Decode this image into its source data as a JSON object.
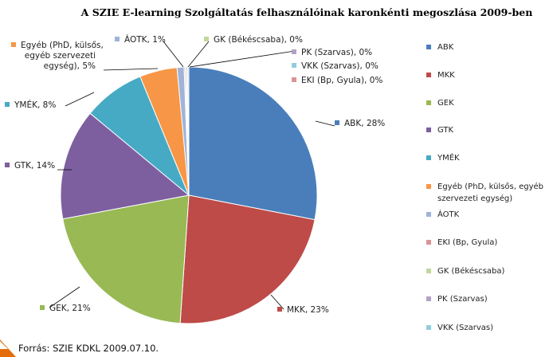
{
  "chart_data": {
    "type": "pie",
    "title": "A SZIE E-learning Szolgáltatás felhasználóinak karonkénti  megoszlása 2009-ben",
    "slices": [
      {
        "key": "abk",
        "legend": "ABK",
        "label": [
          "ABK, 28%"
        ],
        "value": 28.5,
        "color": "#4a7ebb"
      },
      {
        "key": "mkk",
        "legend": "MKK",
        "label": [
          "MKK, 23%"
        ],
        "value": 23.4,
        "color": "#be4b48"
      },
      {
        "key": "gek",
        "legend": "GEK",
        "label": [
          "GEK, 21%"
        ],
        "value": 21.3,
        "color": "#98b954"
      },
      {
        "key": "gtk",
        "legend": "GTK",
        "label": [
          "GTK, 14%"
        ],
        "value": 14.2,
        "color": "#7d5fa0"
      },
      {
        "key": "ymek",
        "legend": "YMÉK",
        "label": [
          "YMÉK, 8%"
        ],
        "value": 7.9,
        "color": "#46aac5"
      },
      {
        "key": "egyeb",
        "legend": [
          "Egyéb (PhD, külsős, egyéb",
          "szervezeti egység)"
        ],
        "label": [
          "Egyéb (PhD, külsős,",
          "egyéb szervezeti",
          "egység), 5%"
        ],
        "value": 4.8,
        "color": "#f79646"
      },
      {
        "key": "aotk",
        "legend": "ÁOTK",
        "label": [
          "ÁOTK, 1%"
        ],
        "value": 0.9,
        "color": "#9fb4d8"
      },
      {
        "key": "eki",
        "legend": "EKI (Bp, Gyula)",
        "label": [
          "EKI (Bp, Gyula), 0%"
        ],
        "value": 0.15,
        "color": "#d99594"
      },
      {
        "key": "gk",
        "legend": "GK (Békéscsaba)",
        "label": [
          "GK (Békéscsaba), 0%"
        ],
        "value": 0.15,
        "color": "#c3d69b"
      },
      {
        "key": "pk",
        "legend": "PK (Szarvas)",
        "label": [
          "PK (Szarvas), 0%"
        ],
        "value": 0.15,
        "color": "#b2a2c7"
      },
      {
        "key": "vkk",
        "legend": "VKK (Szarvas)",
        "label": [
          "VKK (Szarvas), 0%"
        ],
        "value": 0.15,
        "color": "#93cddd"
      }
    ],
    "legend_order": [
      "abk",
      "mkk",
      "gek",
      "gtk",
      "ymek",
      "egyeb",
      "aotk",
      "eki",
      "gk",
      "pk",
      "vkk"
    ],
    "legend_placement": "right"
  },
  "source": "Forrás: SZIE KDKL 2009.07.10."
}
